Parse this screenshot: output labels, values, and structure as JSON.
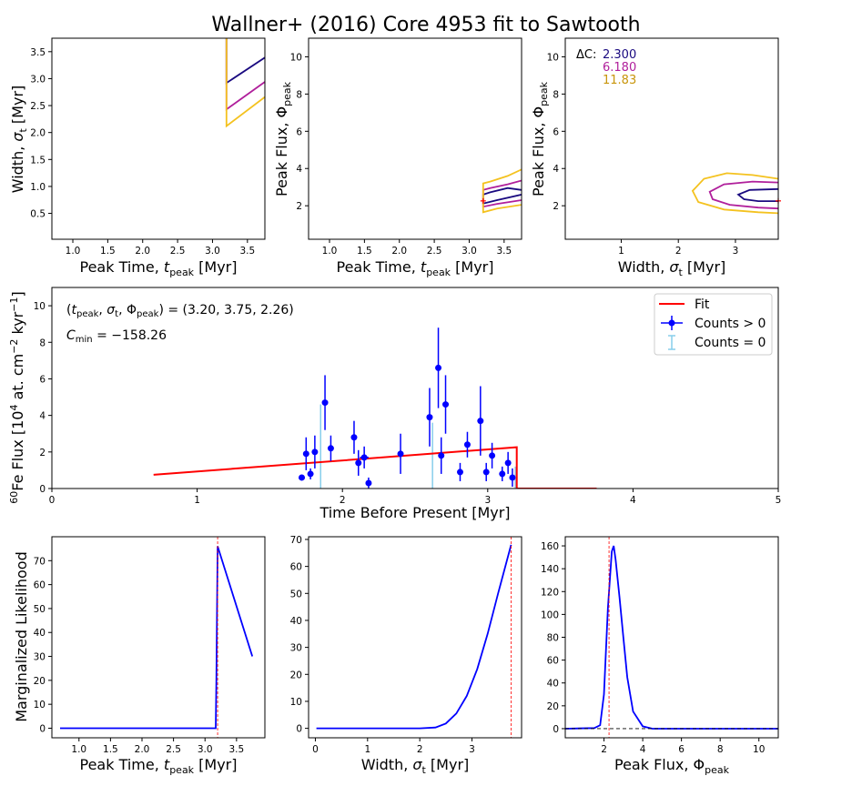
{
  "title": "Wallner+ (2016) Core 4953 fit to Sawtooth",
  "colors": {
    "red": "#ff0000",
    "blue": "#0000ff",
    "light_blue": "#87ceeb",
    "c1": "#1a0a80",
    "c2": "#b01f9b",
    "c3": "#f4c21f",
    "c3_text": "#c8950a",
    "marker": "#ff0000"
  },
  "chart_data": [
    {
      "id": "p1",
      "type": "line",
      "title": "",
      "xlabel": "Peak Time, t_peak [Myr]",
      "ylabel": "Width, σ_t [Myr]",
      "xlim": [
        0.7,
        3.75
      ],
      "ylim": [
        0.02,
        3.75
      ],
      "xticks": [
        1.0,
        1.5,
        2.0,
        2.5,
        3.0,
        3.5
      ],
      "yticks": [
        0.5,
        1.0,
        1.5,
        2.0,
        2.5,
        3.0,
        3.5
      ],
      "series": [
        {
          "name": "2.300",
          "color": "#1a0a80",
          "x": [
            3.2,
            3.2,
            3.75
          ],
          "y": [
            3.75,
            2.92,
            3.39
          ]
        },
        {
          "name": "6.180",
          "color": "#b01f9b",
          "x": [
            3.2,
            3.2,
            3.75
          ],
          "y": [
            3.75,
            2.43,
            2.94
          ]
        },
        {
          "name": "11.83",
          "color": "#f4c21f",
          "x": [
            3.2,
            3.2,
            3.75
          ],
          "y": [
            3.75,
            2.12,
            2.66
          ]
        }
      ]
    },
    {
      "id": "p2",
      "type": "line",
      "title": "",
      "xlabel": "Peak Time, t_peak [Myr]",
      "ylabel": "Peak Flux, Φ_peak",
      "xlim": [
        0.7,
        3.75
      ],
      "ylim": [
        0.2,
        11.0
      ],
      "xticks": [
        1.0,
        1.5,
        2.0,
        2.5,
        3.0,
        3.5
      ],
      "yticks": [
        2,
        4,
        6,
        8,
        10
      ],
      "series": [
        {
          "name": "2.300",
          "color": "#1a0a80",
          "x": [
            3.75,
            3.55,
            3.3,
            3.2,
            3.2,
            3.4,
            3.75
          ],
          "y": [
            2.85,
            2.95,
            2.72,
            2.6,
            2.12,
            2.3,
            2.6
          ]
        },
        {
          "name": "6.180",
          "color": "#b01f9b",
          "x": [
            3.75,
            3.55,
            3.3,
            3.2,
            3.2,
            3.4,
            3.75
          ],
          "y": [
            3.35,
            3.15,
            2.95,
            2.85,
            1.95,
            2.1,
            2.3
          ]
        },
        {
          "name": "11.83",
          "color": "#f4c21f",
          "x": [
            3.75,
            3.55,
            3.3,
            3.2,
            3.2,
            3.4,
            3.75
          ],
          "y": [
            3.95,
            3.6,
            3.3,
            3.2,
            1.65,
            1.85,
            2.05
          ]
        }
      ],
      "marker": {
        "x": 3.2,
        "y": 2.26
      }
    },
    {
      "id": "p3",
      "type": "line",
      "title": "",
      "xlabel": "Width, σ_t [Myr]",
      "ylabel": "Peak Flux, Φ_peak",
      "xlim": [
        0.02,
        3.75
      ],
      "ylim": [
        0.2,
        11.0
      ],
      "xticks": [
        1,
        2,
        3
      ],
      "yticks": [
        2,
        4,
        6,
        8,
        10
      ],
      "series": [
        {
          "name": "2.300",
          "color": "#1a0a80",
          "x": [
            3.75,
            3.25,
            3.05,
            3.15,
            3.4,
            3.75
          ],
          "y": [
            2.9,
            2.85,
            2.6,
            2.35,
            2.25,
            2.25
          ]
        },
        {
          "name": "6.180",
          "color": "#b01f9b",
          "x": [
            3.75,
            3.3,
            2.8,
            2.55,
            2.6,
            2.9,
            3.4,
            3.75
          ],
          "y": [
            3.25,
            3.3,
            3.15,
            2.75,
            2.35,
            2.05,
            1.9,
            1.85
          ]
        },
        {
          "name": "11.83",
          "color": "#f4c21f",
          "x": [
            3.75,
            3.3,
            2.85,
            2.45,
            2.25,
            2.35,
            2.8,
            3.4,
            3.75
          ],
          "y": [
            3.45,
            3.65,
            3.75,
            3.45,
            2.8,
            2.2,
            1.8,
            1.65,
            1.6
          ]
        }
      ],
      "marker": {
        "x": 3.75,
        "y": 2.26
      },
      "annotation": {
        "label": "ΔC:",
        "levels": [
          "2.300",
          "6.180",
          "11.83"
        ]
      }
    },
    {
      "id": "main",
      "type": "scatter",
      "title": "",
      "xlabel": "Time Before Present [Myr]",
      "ylabel": "60Fe Flux  [10^4 at. cm^-2 kyr^-1]",
      "xlim": [
        0,
        5
      ],
      "ylim": [
        0,
        11
      ],
      "xticks": [
        0,
        1,
        2,
        3,
        4,
        5
      ],
      "yticks": [
        0,
        2,
        4,
        6,
        8,
        10
      ],
      "fit": {
        "name": "Fit",
        "color": "#ff0000",
        "x": [
          0.7,
          3.2,
          3.2,
          3.75
        ],
        "y": [
          0.75,
          2.26,
          0.0,
          0.0
        ]
      },
      "counts_pos": {
        "name": "Counts > 0",
        "color": "#0000ff",
        "x": [
          1.72,
          1.75,
          1.78,
          1.81,
          1.88,
          1.92,
          2.08,
          2.11,
          2.15,
          2.18,
          2.4,
          2.6,
          2.66,
          2.68,
          2.71,
          2.81,
          2.86,
          2.95,
          2.99,
          3.03,
          3.1,
          3.14,
          3.17
        ],
        "y": [
          0.6,
          1.9,
          0.8,
          2.0,
          4.7,
          2.2,
          2.8,
          1.4,
          1.7,
          0.3,
          1.9,
          3.9,
          6.6,
          1.8,
          4.6,
          0.9,
          2.4,
          3.7,
          0.9,
          1.8,
          0.8,
          1.4,
          0.6
        ],
        "yerr": [
          0.1,
          0.9,
          0.3,
          0.9,
          1.5,
          0.7,
          0.9,
          0.7,
          0.6,
          0.3,
          1.1,
          1.6,
          2.2,
          1.0,
          1.6,
          0.5,
          0.7,
          1.9,
          0.5,
          0.7,
          0.4,
          0.6,
          0.5
        ],
        "xerr": [
          0.02,
          0.0,
          0.02,
          0.0,
          0.0,
          0.0,
          0.0,
          0.0,
          0.03,
          0.0,
          0.0,
          0.0,
          0.0,
          0.0,
          0.0,
          0.0,
          0.0,
          0.0,
          0.0,
          0.0,
          0.0,
          0.0,
          0.0
        ]
      },
      "counts_zero": {
        "name": "Counts = 0",
        "color": "#87ceeb",
        "x": [
          1.85,
          2.62,
          3.19
        ],
        "y": [
          0.0,
          0.0,
          0.0
        ],
        "yerr_hi": [
          4.6,
          3.6,
          1.2
        ]
      },
      "legend": [
        "Fit",
        "Counts > 0",
        "Counts = 0"
      ],
      "annotations": {
        "params": "(t_peak, σ_t, Φ_peak) = (3.20, 3.75, 2.26)",
        "cmin": "C_min = −158.26"
      }
    },
    {
      "id": "b1",
      "type": "line",
      "title": "",
      "xlabel": "Peak Time, t_peak [Myr]",
      "ylabel": "Marginalized Likelihood",
      "xlim": [
        0.57,
        3.95
      ],
      "ylim": [
        -4,
        80
      ],
      "xticks": [
        1.0,
        1.5,
        2.0,
        2.5,
        3.0,
        3.5
      ],
      "yticks": [
        0,
        10,
        20,
        30,
        40,
        50,
        60,
        70
      ],
      "series": [
        {
          "name": "likelihood",
          "color": "#0000ff",
          "x": [
            0.7,
            3.17,
            3.18,
            3.2,
            3.75
          ],
          "y": [
            0,
            0,
            20,
            76,
            30
          ]
        }
      ],
      "vline": 3.2
    },
    {
      "id": "b2",
      "type": "line",
      "title": "",
      "xlabel": "Width, σ_t [Myr]",
      "ylabel": "",
      "xlim": [
        -0.13,
        3.95
      ],
      "ylim": [
        -3.5,
        71
      ],
      "xticks": [
        0,
        1,
        2,
        3
      ],
      "yticks": [
        0,
        10,
        20,
        30,
        40,
        50,
        60,
        70
      ],
      "series": [
        {
          "name": "likelihood",
          "color": "#0000ff",
          "x": [
            0.02,
            2.0,
            2.3,
            2.5,
            2.7,
            2.9,
            3.1,
            3.3,
            3.5,
            3.75
          ],
          "y": [
            0,
            0,
            0.3,
            1.8,
            5.5,
            12,
            22,
            35,
            50,
            68
          ]
        }
      ],
      "vline": 3.75
    },
    {
      "id": "b3",
      "type": "line",
      "title": "",
      "xlabel": "Peak Flux, Φ_peak",
      "ylabel": "",
      "xlim": [
        0,
        11
      ],
      "ylim": [
        -8,
        168
      ],
      "xticks": [
        2,
        4,
        6,
        8,
        10
      ],
      "yticks": [
        0,
        20,
        40,
        60,
        80,
        100,
        120,
        140,
        160
      ],
      "series": [
        {
          "name": "likelihood",
          "color": "#0000ff",
          "x": [
            0,
            1.5,
            1.8,
            2.0,
            2.2,
            2.4,
            2.5,
            2.6,
            2.8,
            3.0,
            3.2,
            3.5,
            4.0,
            4.5,
            11
          ],
          "y": [
            0,
            0.5,
            3,
            30,
            105,
            155,
            160,
            148,
            115,
            80,
            45,
            15,
            2,
            0,
            0
          ]
        }
      ],
      "vline": 2.26,
      "hline": 0
    }
  ]
}
